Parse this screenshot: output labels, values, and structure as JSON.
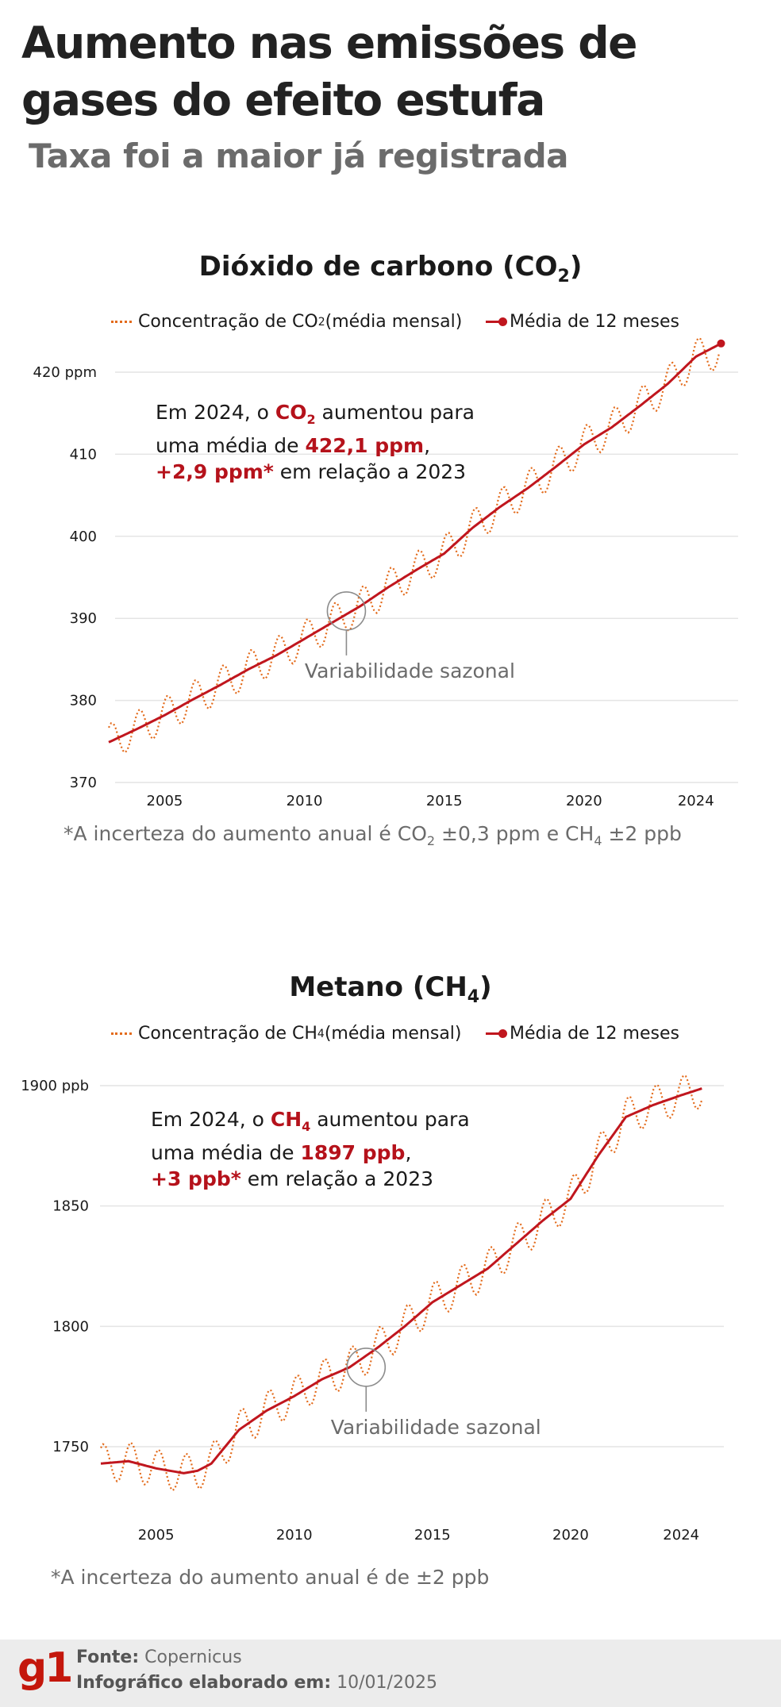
{
  "header": {
    "title": "Aumento nas emissões de gases do efeito estufa",
    "subtitle": "Taxa foi a maior já registrada"
  },
  "colors": {
    "monthly": "#e36a1a",
    "average": "#c0161e",
    "highlight": "#b5121b",
    "grid": "#e4e4e4",
    "muted": "#6b6b6b"
  },
  "co2": {
    "title_main": "Dióxido de carbono (CO",
    "title_sub": "2",
    "title_end": ")",
    "legend_monthly_pre": "Concentração de CO",
    "legend_monthly_sub": "2",
    "legend_monthly_post": " (média mensal)",
    "legend_avg": "Média de 12 meses",
    "annotation": {
      "l1_pre": "Em 2024, o ",
      "l1_bold": "CO",
      "l1_sub": "2",
      "l1_post": " aumentou para",
      "l2_pre": "uma média de ",
      "l2_bold": "422,1 ppm",
      "l2_post": ",",
      "l3_bold": "+2,9 ppm*",
      "l3_post": " em relação a 2023"
    },
    "seasonal_label": "Variabilidade sazonal",
    "footnote_pre": "*A incerteza do aumento anual é CO",
    "footnote_sub1": "2",
    "footnote_mid": " ±0,3 ppm e CH",
    "footnote_sub2": "4",
    "footnote_post": " ±2 ppb"
  },
  "ch4": {
    "title_main": "Metano (CH",
    "title_sub": "4",
    "title_end": ")",
    "legend_monthly_pre": "Concentração de CH",
    "legend_monthly_sub": "4",
    "legend_monthly_post": "(média mensal)",
    "legend_avg": "Média de 12 meses",
    "annotation": {
      "l1_pre": "Em 2024, o ",
      "l1_bold": "CH",
      "l1_sub": "4",
      "l1_post": " aumentou para",
      "l2_pre": "uma média de ",
      "l2_bold": "1897 ppb",
      "l2_post": ",",
      "l3_bold": "+3 ppb*",
      "l3_post": " em relação a 2023"
    },
    "seasonal_label": "Variabilidade sazonal",
    "footnote": "*A incerteza do aumento anual é de ±2 ppb"
  },
  "footer": {
    "logo": "g1",
    "source_label": "Fonte:",
    "source_value": " Copernicus",
    "date_label": "Infográfico elaborado em:",
    "date_value": " 10/01/2025"
  },
  "chart_data": [
    {
      "type": "line",
      "title": "Dióxido de carbono (CO2)",
      "y_unit_label": "ppm",
      "xlim": [
        2003.0,
        2025.0
      ],
      "ylim": [
        370,
        423
      ],
      "x_ticks": [
        2005,
        2010,
        2015,
        2020,
        2024
      ],
      "x_tick_labels": [
        "2005",
        "2010",
        "2015",
        "2020",
        "2024"
      ],
      "y_ticks": [
        370,
        380,
        390,
        400,
        410,
        420
      ],
      "y_tick_labels": [
        "370",
        "380",
        "390",
        "400",
        "410",
        "420 ppm"
      ],
      "grid": true,
      "legend_position": "top",
      "seasonal_marker": {
        "x": 2011.5,
        "y": 390.9
      },
      "series": [
        {
          "name": "Concentração de CO2 (média mensal)",
          "style": "dotted",
          "seasonal_amplitude": 2.2,
          "x": [
            2003.0,
            2004.0,
            2005.0,
            2006.0,
            2007.0,
            2008.0,
            2009.0,
            2010.0,
            2011.0,
            2012.0,
            2013.0,
            2014.0,
            2015.0,
            2016.0,
            2017.0,
            2018.0,
            2019.0,
            2020.0,
            2021.0,
            2022.0,
            2023.0,
            2024.0,
            2024.9
          ],
          "y": [
            374.9,
            376.5,
            378.2,
            380.1,
            381.9,
            383.8,
            385.5,
            387.5,
            389.5,
            391.5,
            393.8,
            395.9,
            397.9,
            401.0,
            403.6,
            405.9,
            408.5,
            411.2,
            413.3,
            415.9,
            418.6,
            421.9,
            422.6
          ]
        },
        {
          "name": "Média de 12 meses",
          "style": "solid",
          "end_marker": true,
          "x": [
            2003.0,
            2004.0,
            2005.0,
            2006.0,
            2007.0,
            2008.0,
            2009.0,
            2010.0,
            2011.0,
            2012.0,
            2013.0,
            2014.0,
            2015.0,
            2016.0,
            2017.0,
            2018.0,
            2019.0,
            2020.0,
            2021.0,
            2022.0,
            2023.0,
            2024.0,
            2024.9
          ],
          "y": [
            374.9,
            376.5,
            378.2,
            380.1,
            381.9,
            383.8,
            385.5,
            387.5,
            389.5,
            391.5,
            393.8,
            395.9,
            397.9,
            401.0,
            403.6,
            405.9,
            408.5,
            411.2,
            413.3,
            415.9,
            418.6,
            421.9,
            423.5
          ]
        }
      ]
    },
    {
      "type": "line",
      "title": "Metano (CH4)",
      "y_unit_label": "ppb",
      "xlim": [
        2003.0,
        2025.2
      ],
      "ylim": [
        1730,
        1910
      ],
      "x_ticks": [
        2005,
        2010,
        2015,
        2020,
        2024
      ],
      "x_tick_labels": [
        "2005",
        "2010",
        "2015",
        "2020",
        "2024"
      ],
      "y_ticks": [
        1750,
        1800,
        1850,
        1900
      ],
      "y_tick_labels": [
        "1750",
        "1800",
        "1850",
        "1900 ppb"
      ],
      "grid": true,
      "legend_position": "top",
      "seasonal_marker": {
        "x": 2012.6,
        "y": 1783
      },
      "series": [
        {
          "name": "Concentração de CH4(média mensal)",
          "style": "dotted",
          "seasonal_amplitude": 8,
          "x": [
            2003.0,
            2004.0,
            2005.0,
            2006.0,
            2006.5,
            2007.0,
            2008.0,
            2009.0,
            2010.0,
            2011.0,
            2012.0,
            2013.0,
            2014.0,
            2015.0,
            2016.0,
            2017.0,
            2018.0,
            2019.0,
            2020.0,
            2021.0,
            2022.0,
            2023.0,
            2024.0,
            2024.8
          ],
          "y": [
            1743,
            1744,
            1741,
            1739,
            1740,
            1743,
            1757,
            1765,
            1771,
            1778,
            1783,
            1791,
            1800,
            1810,
            1817,
            1824,
            1834,
            1844,
            1853,
            1871,
            1887,
            1892,
            1896,
            1899
          ]
        },
        {
          "name": "Média de 12 meses",
          "style": "solid",
          "x": [
            2003.0,
            2004.0,
            2005.0,
            2006.0,
            2006.5,
            2007.0,
            2008.0,
            2009.0,
            2010.0,
            2011.0,
            2012.0,
            2013.0,
            2014.0,
            2015.0,
            2016.0,
            2017.0,
            2018.0,
            2019.0,
            2020.0,
            2021.0,
            2022.0,
            2023.0,
            2024.0,
            2024.8
          ],
          "y": [
            1743,
            1744,
            1741,
            1739,
            1740,
            1743,
            1757,
            1765,
            1771,
            1778,
            1783,
            1791,
            1800,
            1810,
            1817,
            1824,
            1834,
            1844,
            1853,
            1871,
            1887,
            1892,
            1896,
            1899
          ]
        }
      ]
    }
  ]
}
